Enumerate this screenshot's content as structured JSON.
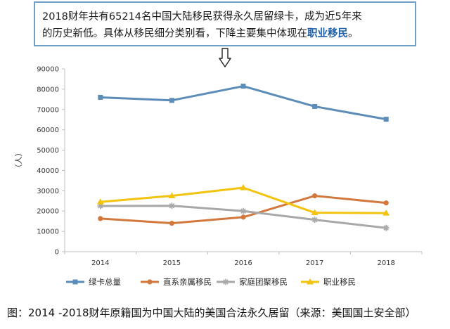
{
  "callout": {
    "line1": "2018财年共有65214名中国大陆移民获得永久居留绿卡，成为近5年来",
    "line2_prefix": "的历史新低。具体从移民细分类别看，下降主要集中体现在",
    "line2_highlight": "职业移民",
    "line2_suffix": "。"
  },
  "caption": "图：2014 -2018财年原籍国为中国大陆的美国合法永久居留（来源：美国国土安全部）",
  "chart_data": {
    "type": "line",
    "title": "",
    "xlabel": "",
    "ylabel": "（人）",
    "categories": [
      "2014",
      "2015",
      "2016",
      "2017",
      "2018"
    ],
    "ylim": [
      0,
      90000
    ],
    "yticks": [
      0,
      10000,
      20000,
      30000,
      40000,
      50000,
      60000,
      70000,
      80000,
      90000
    ],
    "grid": false,
    "legend_position": "bottom",
    "series": [
      {
        "name": "绿卡总量",
        "color": "#5b8db8",
        "marker": "square",
        "values": [
          76000,
          74500,
          81500,
          71500,
          65214
        ]
      },
      {
        "name": "直系亲属移民",
        "color": "#d2783d",
        "marker": "circle",
        "values": [
          16300,
          14000,
          17000,
          27500,
          24000
        ]
      },
      {
        "name": "家庭团聚移民",
        "color": "#a8a8a8",
        "marker": "star",
        "values": [
          22500,
          22600,
          20000,
          15700,
          11700
        ]
      },
      {
        "name": "职业移民",
        "color": "#f2c40f",
        "marker": "triangle",
        "values": [
          24500,
          27500,
          31500,
          19200,
          19000
        ]
      }
    ]
  }
}
